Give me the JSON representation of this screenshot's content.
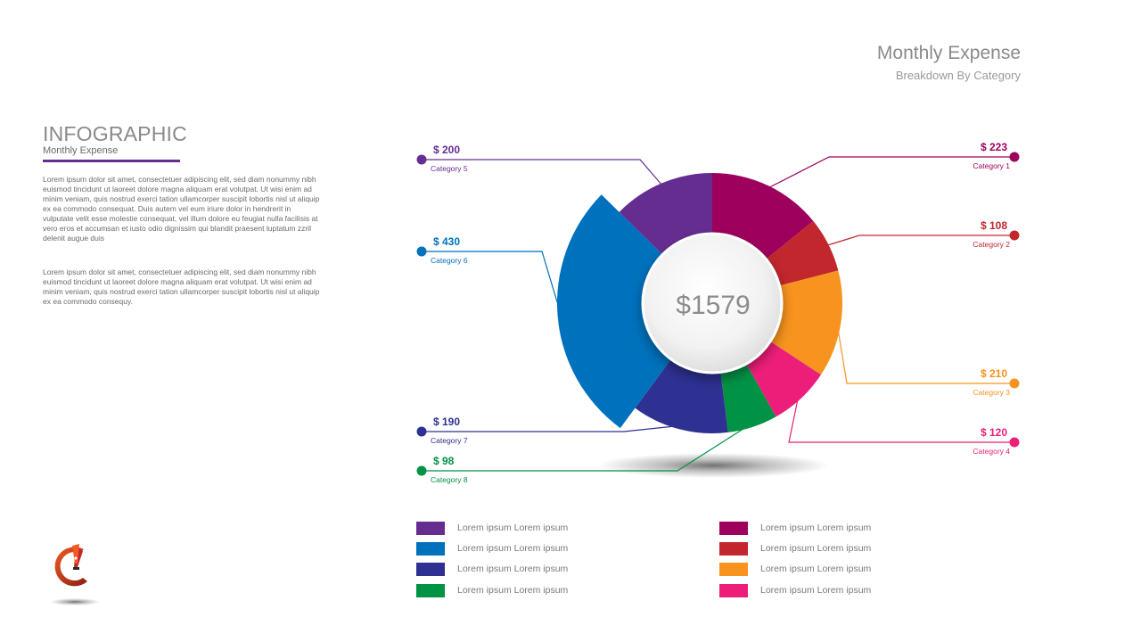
{
  "header": {
    "title": "Monthly Expense",
    "subtitle": "Breakdown By Category"
  },
  "intro": {
    "heading": "INFOGRAPHIC",
    "subheading": "Monthly Expense",
    "paragraphs": [
      "Lorem ipsum dolor sit amet, consectetuer adipiscing elit, sed diam nonummy nibh euismod tincidunt ut laoreet dolore magna aliquam erat volutpat. Ut wisi enim ad minim veniam, quis nostrud exerci tation ullamcorper suscipit lobortis nisl ut aliquip ex ea commodo consequat. Duis autem vel eum iriure dolor in hendrerit in vulputate velit esse molestie consequat, vel illum dolore eu feugiat nulla facilisis at vero eros et accumsan et iusto odio dignissim qui blandit praesent luptatum zzril delenit augue duis",
      "Lorem ipsum dolor sit amet, consectetuer adipiscing elit, sed diam nonummy nibh euismod tincidunt ut laoreet dolore magna aliquam erat volutpat. Ut wisi enim ad minim veniam, quis nostrud exerci tation ullamcorper suscipit lobortis nisl ut aliquip ex ea commodo consequy."
    ]
  },
  "chart_data": {
    "type": "pie",
    "total_label": "$1579",
    "series": [
      {
        "name": "Category 1",
        "value": 223,
        "label": "$ 223",
        "color": "#9e005d",
        "side": "right"
      },
      {
        "name": "Category 2",
        "value": 108,
        "label": "$ 108",
        "color": "#c1272d",
        "side": "right"
      },
      {
        "name": "Category 3",
        "value": 210,
        "label": "$ 210",
        "color": "#f7931e",
        "side": "right"
      },
      {
        "name": "Category 4",
        "value": 120,
        "label": "$ 120",
        "color": "#ed1e79",
        "side": "right"
      },
      {
        "name": "Category 8",
        "value": 98,
        "label": "$ 98",
        "color": "#009245",
        "side": "left"
      },
      {
        "name": "Category 7",
        "value": 190,
        "label": "$ 190",
        "color": "#2e3192",
        "side": "left"
      },
      {
        "name": "Category 6",
        "value": 430,
        "label": "$ 430",
        "color": "#0071bc",
        "side": "left",
        "exploded": true
      },
      {
        "name": "Category 5",
        "value": 200,
        "label": "$ 200",
        "color": "#662d91",
        "side": "left"
      }
    ]
  },
  "legend": {
    "items": [
      {
        "label": "Lorem ipsum Lorem ipsum",
        "color": "#662d91"
      },
      {
        "label": "Lorem ipsum Lorem ipsum",
        "color": "#0071bc"
      },
      {
        "label": "Lorem ipsum Lorem ipsum",
        "color": "#2e3192"
      },
      {
        "label": "Lorem ipsum Lorem ipsum",
        "color": "#009245"
      },
      {
        "label": "Lorem ipsum Lorem ipsum",
        "color": "#9e005d"
      },
      {
        "label": "Lorem ipsum Lorem ipsum",
        "color": "#c1272d"
      },
      {
        "label": "Lorem ipsum Lorem ipsum",
        "color": "#f7931e"
      },
      {
        "label": "Lorem ipsum Lorem ipsum",
        "color": "#ed1e79"
      }
    ]
  }
}
